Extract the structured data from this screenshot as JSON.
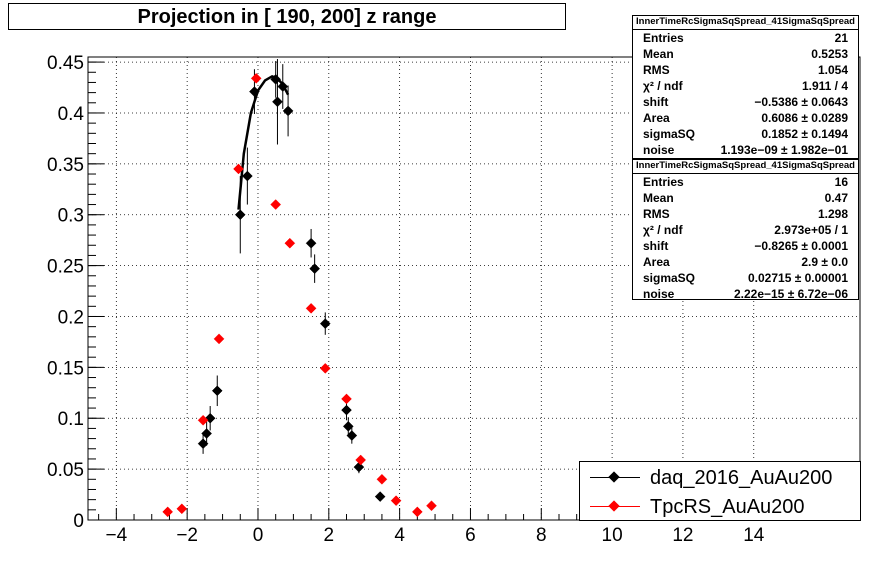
{
  "title": "Projection in [ 190, 200] z range",
  "stats_top": {
    "header": "InnerTimeRcSigmaSqSpread_41SigmaSqSpread",
    "rows": [
      {
        "key": "Entries",
        "value": "21"
      },
      {
        "key": "Mean",
        "value": "0.5253"
      },
      {
        "key": "RMS",
        "value": "1.054"
      },
      {
        "key": "χ² / ndf",
        "value": "1.911 / 4"
      },
      {
        "key": "shift",
        "value": "−0.5386 ± 0.0643"
      },
      {
        "key": "Area",
        "value": "0.6086 ± 0.0289"
      },
      {
        "key": "sigmaSQ",
        "value": "0.1852 ± 0.1494"
      },
      {
        "key": "noise",
        "value": "1.193e−09 ± 1.982e−01"
      }
    ]
  },
  "stats_bottom": {
    "header": "InnerTimeRcSigmaSqSpread_41SigmaSqSpread",
    "rows": [
      {
        "key": "Entries",
        "value": "16"
      },
      {
        "key": "Mean",
        "value": "0.47"
      },
      {
        "key": "RMS",
        "value": "1.298"
      },
      {
        "key": "χ² / ndf",
        "value": "2.973e+05 / 1"
      },
      {
        "key": "shift",
        "value": "−0.8265 ± 0.0001"
      },
      {
        "key": "Area",
        "value": "2.9 ± 0.0"
      },
      {
        "key": "sigmaSQ",
        "value": "0.02715 ± 0.00001"
      },
      {
        "key": "noise",
        "value": "2.22e−15 ± 6.72e−06"
      }
    ]
  },
  "legend": [
    {
      "label": "daq_2016_AuAu200",
      "color": "#000000"
    },
    {
      "label": "TpcRS_AuAu200",
      "color": "#ff0000"
    }
  ],
  "chart_data": {
    "type": "scatter",
    "title": "Projection in [ 190, 200] z range",
    "xlabel": "",
    "ylabel": "",
    "xlim": [
      -4.8,
      17
    ],
    "ylim": [
      0,
      0.455
    ],
    "grid": true,
    "x_ticks": [
      -4,
      -2,
      0,
      2,
      4,
      6,
      8,
      10,
      12,
      14
    ],
    "y_ticks": [
      0,
      0.05,
      0.1,
      0.15,
      0.2,
      0.25,
      0.3,
      0.35,
      0.4,
      0.45
    ],
    "x_tick_labels": [
      "−4",
      "−2",
      "0",
      "2",
      "4",
      "6",
      "8",
      "10",
      "12",
      "14"
    ],
    "y_tick_labels": [
      "0",
      "0.05",
      "0.1",
      "0.15",
      "0.2",
      "0.25",
      "0.3",
      "0.35",
      "0.4",
      "0.45"
    ],
    "legend_position": "bottom-right",
    "series": [
      {
        "name": "daq_2016_AuAu200",
        "color": "#000000",
        "x": [
          -1.55,
          -1.45,
          -1.35,
          -1.15,
          -0.5,
          -0.3,
          -0.1,
          0.5,
          0.55,
          0.7,
          0.85,
          1.5,
          1.6,
          1.9,
          2.5,
          2.55,
          2.65,
          2.85,
          3.45
        ],
        "y": [
          0.075,
          0.085,
          0.1,
          0.127,
          0.3,
          0.338,
          0.421,
          0.433,
          0.411,
          0.426,
          0.402,
          0.272,
          0.247,
          0.193,
          0.108,
          0.092,
          0.083,
          0.052,
          0.023
        ],
        "yerr": [
          0.01,
          0.012,
          0.012,
          0.015,
          0.038,
          0.028,
          0.022,
          0.018,
          0.042,
          0.022,
          0.025,
          0.014,
          0.014,
          0.011,
          0.01,
          0.009,
          0.008,
          0.006,
          0.004
        ]
      },
      {
        "name": "TpcRS_AuAu200",
        "color": "#ff0000",
        "x": [
          -2.55,
          -2.15,
          -1.55,
          -1.1,
          -0.55,
          -0.05,
          0.5,
          0.9,
          1.5,
          1.9,
          2.5,
          2.9,
          3.5,
          3.9,
          4.5,
          4.9
        ],
        "y": [
          0.008,
          0.011,
          0.098,
          0.178,
          0.345,
          0.434,
          0.31,
          0.272,
          0.208,
          0.149,
          0.119,
          0.059,
          0.04,
          0.019,
          0.008,
          0.014
        ]
      }
    ],
    "fit_curve": {
      "color": "#000000",
      "x": [
        -0.55,
        -0.4,
        -0.2,
        0.0,
        0.2,
        0.4,
        0.55,
        0.7,
        0.85
      ],
      "y": [
        0.305,
        0.36,
        0.4,
        0.422,
        0.432,
        0.436,
        0.434,
        0.428,
        0.418
      ]
    }
  }
}
